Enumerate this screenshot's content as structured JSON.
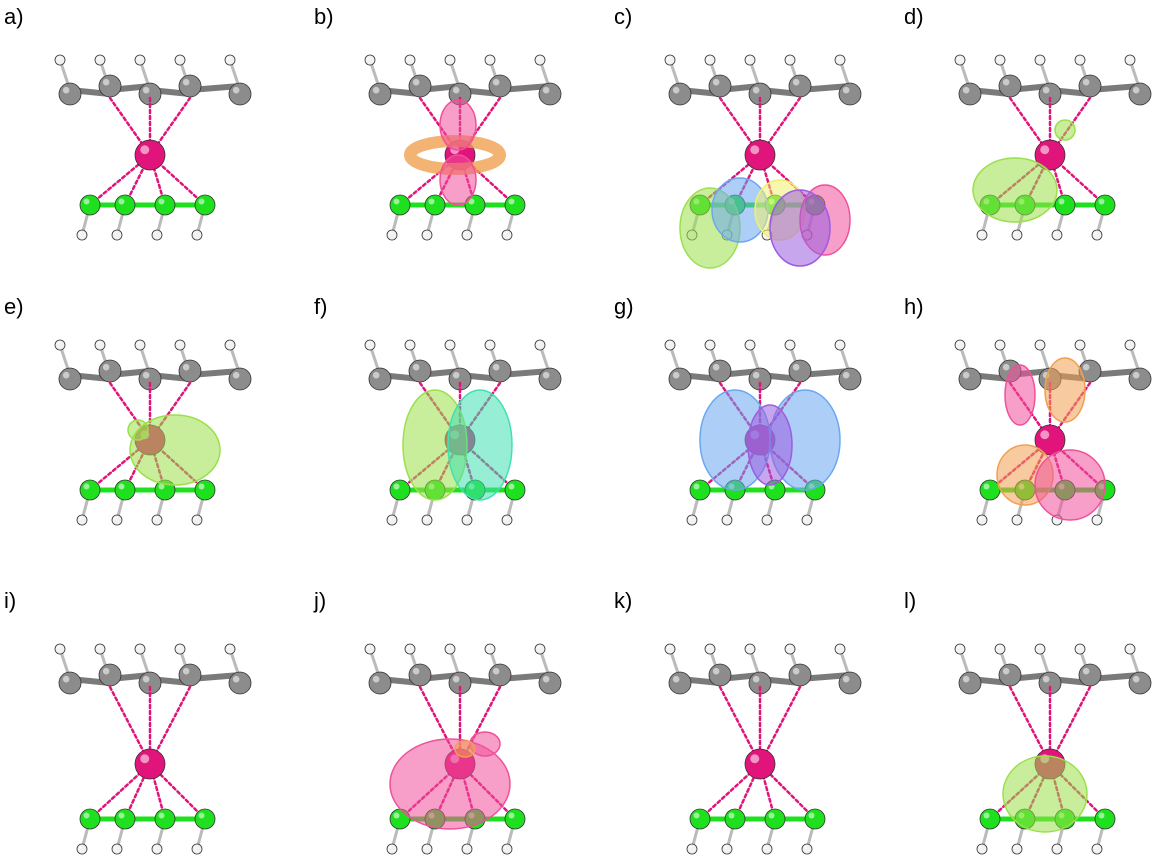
{
  "panels": [
    {
      "id": "a",
      "label": "a)",
      "orbitals": []
    },
    {
      "id": "b",
      "label": "b)",
      "orbitals": [
        "torus-orange",
        "lobe-pink"
      ]
    },
    {
      "id": "c",
      "label": "c)",
      "orbitals": [
        "lobe-green",
        "lobe-blue",
        "lobe-yellow",
        "lobe-purple",
        "lobe-pink"
      ]
    },
    {
      "id": "d",
      "label": "d)",
      "orbitals": [
        "lobe-green"
      ]
    },
    {
      "id": "e",
      "label": "e)",
      "orbitals": [
        "lobe-green"
      ]
    },
    {
      "id": "f",
      "label": "f)",
      "orbitals": [
        "lobe-green",
        "lobe-teal"
      ]
    },
    {
      "id": "g",
      "label": "g)",
      "orbitals": [
        "lobe-blue",
        "lobe-purple"
      ]
    },
    {
      "id": "h",
      "label": "h)",
      "orbitals": [
        "lobe-pink",
        "lobe-orange"
      ]
    },
    {
      "id": "i",
      "label": "i)",
      "orbitals": []
    },
    {
      "id": "j",
      "label": "j)",
      "orbitals": [
        "lobe-pink",
        "lobe-orange"
      ]
    },
    {
      "id": "k",
      "label": "k)",
      "orbitals": []
    },
    {
      "id": "l",
      "label": "l)",
      "orbitals": [
        "lobe-green"
      ]
    }
  ],
  "colors": {
    "metal": "#e0147a",
    "upper_ring": "#8c8c8c",
    "lower_ring": "#1ee01e",
    "hydrogen": "#f2f2f2",
    "orbital_green": "#9be04a",
    "orbital_blue": "#6aa8f0",
    "orbital_purple": "#9b5ce0",
    "orbital_pink": "#f0509a",
    "orbital_orange": "#f0a050",
    "orbital_yellow": "#f0f070",
    "orbital_teal": "#40e0b0"
  }
}
